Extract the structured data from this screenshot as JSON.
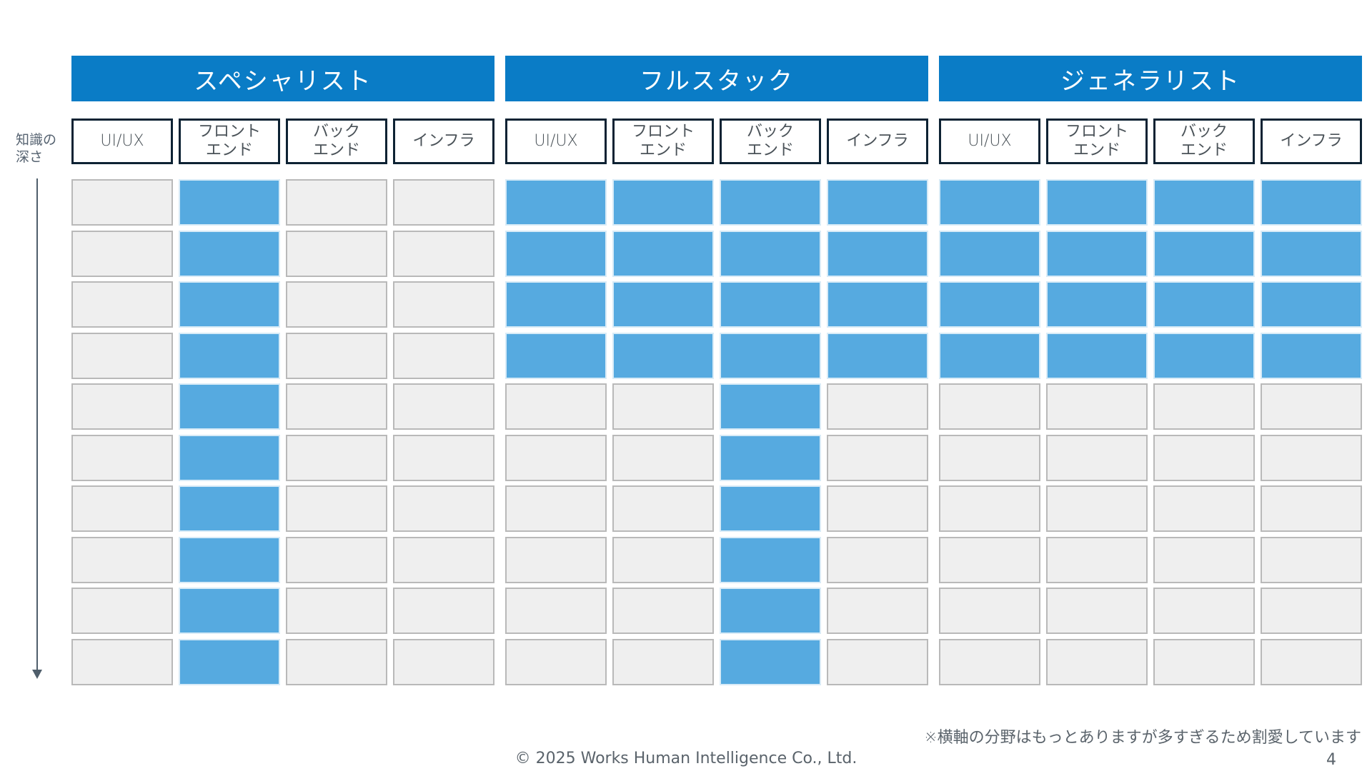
{
  "groups": [
    {
      "title": "スペシャリスト",
      "columns": [
        "UI/UX",
        "フロント\nエンド",
        "バック\nエンド",
        "インフラ"
      ],
      "filled_levels": [
        0,
        10,
        0,
        0
      ]
    },
    {
      "title": "フルスタック",
      "columns": [
        "UI/UX",
        "フロント\nエンド",
        "バック\nエンド",
        "インフラ"
      ],
      "filled_levels": [
        4,
        4,
        10,
        4
      ]
    },
    {
      "title": "ジェネラリスト",
      "columns": [
        "UI/UX",
        "フロント\nエンド",
        "バック\nエンド",
        "インフラ"
      ],
      "filled_levels": [
        4,
        4,
        4,
        4
      ]
    }
  ],
  "rows_per_column": 10,
  "axis": {
    "label": "知識の\n深さ"
  },
  "footnote": "※横軸の分野はもっとありますが多すぎるため割愛しています",
  "copyright": "© 2025 Works Human Intelligence Co., Ltd.",
  "page_number": "4",
  "colors": {
    "header_fill": "#0a7cc6",
    "filled_cell": "#56aae0",
    "empty_cell": "#efefef",
    "column_header_border": "#0d2233",
    "text_gray": "#5a636b"
  }
}
